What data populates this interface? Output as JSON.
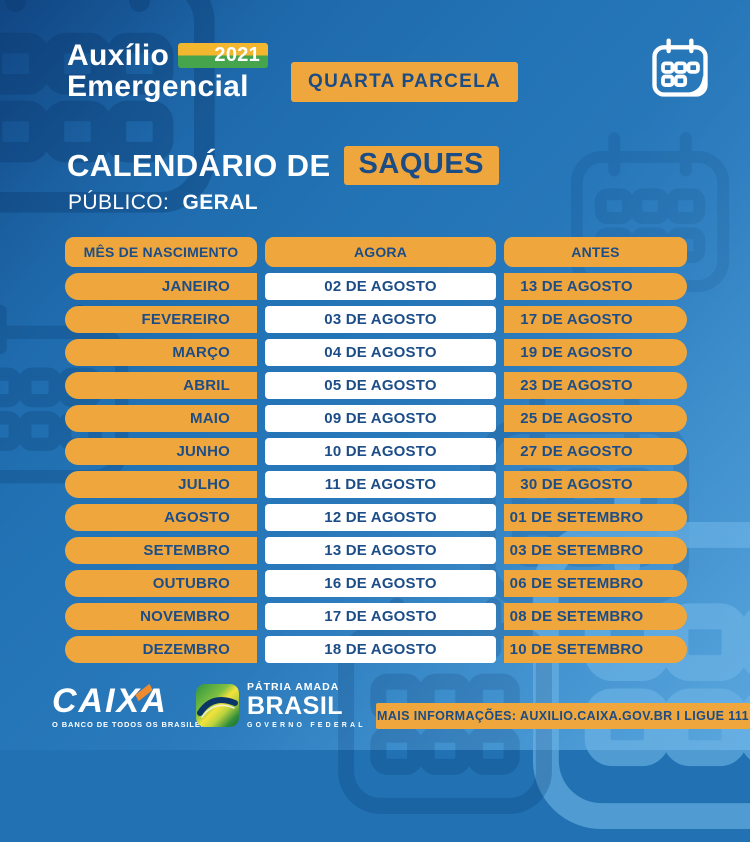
{
  "brand": {
    "line1": "Auxílio",
    "line2": "Emergencial",
    "year": "2021"
  },
  "badges": {
    "parcela": "QUARTA PARCELA"
  },
  "title": {
    "lead": "CALENDÁRIO DE",
    "highlight": "SAQUES"
  },
  "publico": {
    "label": "PÚBLICO:",
    "value": "GERAL"
  },
  "table": {
    "col_month": "MÊS DE NASCIMENTO",
    "col_agora": "AGORA",
    "col_antes": "ANTES",
    "rows": [
      {
        "month": "JANEIRO",
        "agora": "02 DE AGOSTO",
        "antes": "13 DE AGOSTO"
      },
      {
        "month": "FEVEREIRO",
        "agora": "03 DE AGOSTO",
        "antes": "17 DE AGOSTO"
      },
      {
        "month": "MARÇO",
        "agora": "04 DE AGOSTO",
        "antes": "19 DE AGOSTO"
      },
      {
        "month": "ABRIL",
        "agora": "05 DE AGOSTO",
        "antes": "23 DE AGOSTO"
      },
      {
        "month": "MAIO",
        "agora": "09 DE AGOSTO",
        "antes": "25 DE AGOSTO"
      },
      {
        "month": "JUNHO",
        "agora": "10 DE AGOSTO",
        "antes": "27 DE AGOSTO"
      },
      {
        "month": "JULHO",
        "agora": "11 DE AGOSTO",
        "antes": "30 DE AGOSTO"
      },
      {
        "month": "AGOSTO",
        "agora": "12 DE AGOSTO",
        "antes": "01 DE SETEMBRO"
      },
      {
        "month": "SETEMBRO",
        "agora": "13 DE AGOSTO",
        "antes": "03 DE SETEMBRO"
      },
      {
        "month": "OUTUBRO",
        "agora": "16 DE AGOSTO",
        "antes": "06 DE SETEMBRO"
      },
      {
        "month": "NOVEMBRO",
        "agora": "17 DE AGOSTO",
        "antes": "08 DE SETEMBRO"
      },
      {
        "month": "DEZEMBRO",
        "agora": "18 DE AGOSTO",
        "antes": "10 DE SETEMBRO"
      }
    ]
  },
  "footer": {
    "caixa_name": "CAIXA",
    "caixa_tagline": "O BANCO DE TODOS OS BRASILEIROS",
    "gov_top": "PÁTRIA AMADA",
    "gov_name": "BRASIL",
    "gov_sub": "GOVERNO FEDERAL",
    "info": "MAIS INFORMAÇÕES: AUXILIO.CAIXA.GOV.BR I LIGUE 111"
  },
  "icons": {
    "calendar": "calendar-icon",
    "watermark": "calendar-watermark-icon"
  },
  "colors": {
    "background_blue": "#2171B3",
    "dark_navy_text": "#1B4C86",
    "orange": "#EFA73D",
    "badge_yellow": "#F2B62F",
    "badge_green": "#46A54C",
    "white": "#FFFFFF",
    "caixa_accent_orange": "#F08A2E"
  }
}
